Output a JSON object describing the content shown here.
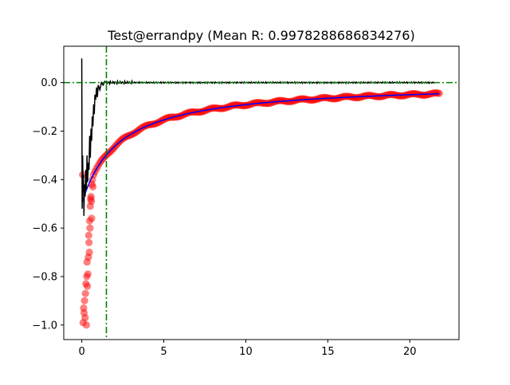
{
  "chart_data": {
    "type": "scatter",
    "title": "Test@errandpy (Mean R: 0.9978288686834276)",
    "xlabel": "",
    "ylabel": "",
    "xlim": [
      -1.1,
      23.0
    ],
    "ylim": [
      -1.06,
      0.15
    ],
    "grid": false,
    "x_ticks": [
      0,
      5,
      10,
      15,
      20
    ],
    "y_ticks": [
      0.0,
      -0.2,
      -0.4,
      -0.6,
      -0.8,
      -1.0
    ],
    "x_tick_labels": [
      "0",
      "5",
      "10",
      "15",
      "20"
    ],
    "y_tick_labels": [
      "0.0",
      "−0.2",
      "−0.4",
      "−0.6",
      "−0.8",
      "−1.0"
    ],
    "reference_lines": {
      "horizontal_y": 0.0,
      "vertical_x": 1.5,
      "color": "#008000",
      "style": "dashdot"
    },
    "series": [
      {
        "kind": "scatter",
        "color": "#ff0000",
        "opacity": 0.5,
        "model": "y = -0.5 / (1 + 0.45 * x) for x >= 0.8",
        "x_range": [
          0.8,
          21.8
        ],
        "n_points": 230,
        "early_points": [
          [
            0.05,
            -0.38
          ],
          [
            0.08,
            -0.99
          ],
          [
            0.11,
            -0.93
          ],
          [
            0.14,
            -0.95
          ],
          [
            0.17,
            -0.9
          ],
          [
            0.2,
            -0.97
          ],
          [
            0.22,
            -0.87
          ],
          [
            0.25,
            -0.83
          ],
          [
            0.28,
            -1.0
          ],
          [
            0.3,
            -0.8
          ],
          [
            0.32,
            -0.74
          ],
          [
            0.34,
            -0.84
          ],
          [
            0.37,
            -0.79
          ],
          [
            0.4,
            -0.72
          ],
          [
            0.42,
            -0.63
          ],
          [
            0.44,
            -0.66
          ],
          [
            0.46,
            -0.7
          ],
          [
            0.48,
            -0.57
          ],
          [
            0.5,
            -0.6
          ],
          [
            0.52,
            -0.51
          ],
          [
            0.54,
            -0.48
          ],
          [
            0.56,
            -0.47
          ],
          [
            0.58,
            -0.49
          ],
          [
            0.6,
            -0.56
          ],
          [
            0.62,
            -0.42
          ],
          [
            0.65,
            -0.4
          ],
          [
            0.68,
            -0.43
          ],
          [
            0.72,
            -0.38
          ]
        ]
      },
      {
        "kind": "line",
        "color": "#0000ff",
        "model": "y = -0.5 / (1 + 0.45 * x)",
        "x_range": [
          0.05,
          21.8
        ]
      },
      {
        "kind": "line",
        "color": "#000000",
        "model": "noisy residual settling to 0 by x = 1.5",
        "x_range": [
          0.0,
          21.5
        ],
        "points": [
          [
            0.0,
            0.1
          ],
          [
            0.02,
            -0.52
          ],
          [
            0.05,
            -0.3
          ],
          [
            0.08,
            -0.45
          ],
          [
            0.1,
            -0.38
          ],
          [
            0.13,
            -0.55
          ],
          [
            0.16,
            -0.42
          ],
          [
            0.2,
            -0.47
          ],
          [
            0.24,
            -0.36
          ],
          [
            0.28,
            -0.44
          ],
          [
            0.32,
            -0.3
          ],
          [
            0.36,
            -0.41
          ],
          [
            0.4,
            -0.33
          ],
          [
            0.44,
            -0.36
          ],
          [
            0.48,
            -0.22
          ],
          [
            0.52,
            -0.31
          ],
          [
            0.56,
            -0.19
          ],
          [
            0.6,
            -0.24
          ],
          [
            0.64,
            -0.14
          ],
          [
            0.68,
            -0.18
          ],
          [
            0.72,
            -0.09
          ],
          [
            0.76,
            -0.13
          ],
          [
            0.8,
            -0.05
          ],
          [
            0.85,
            -0.07
          ],
          [
            0.9,
            -0.02
          ],
          [
            0.95,
            -0.06
          ],
          [
            1.0,
            -0.01
          ],
          [
            1.1,
            -0.03
          ],
          [
            1.2,
            0.0
          ],
          [
            1.3,
            -0.01
          ],
          [
            1.4,
            0.005
          ],
          [
            1.5,
            0.0
          ]
        ]
      }
    ]
  }
}
